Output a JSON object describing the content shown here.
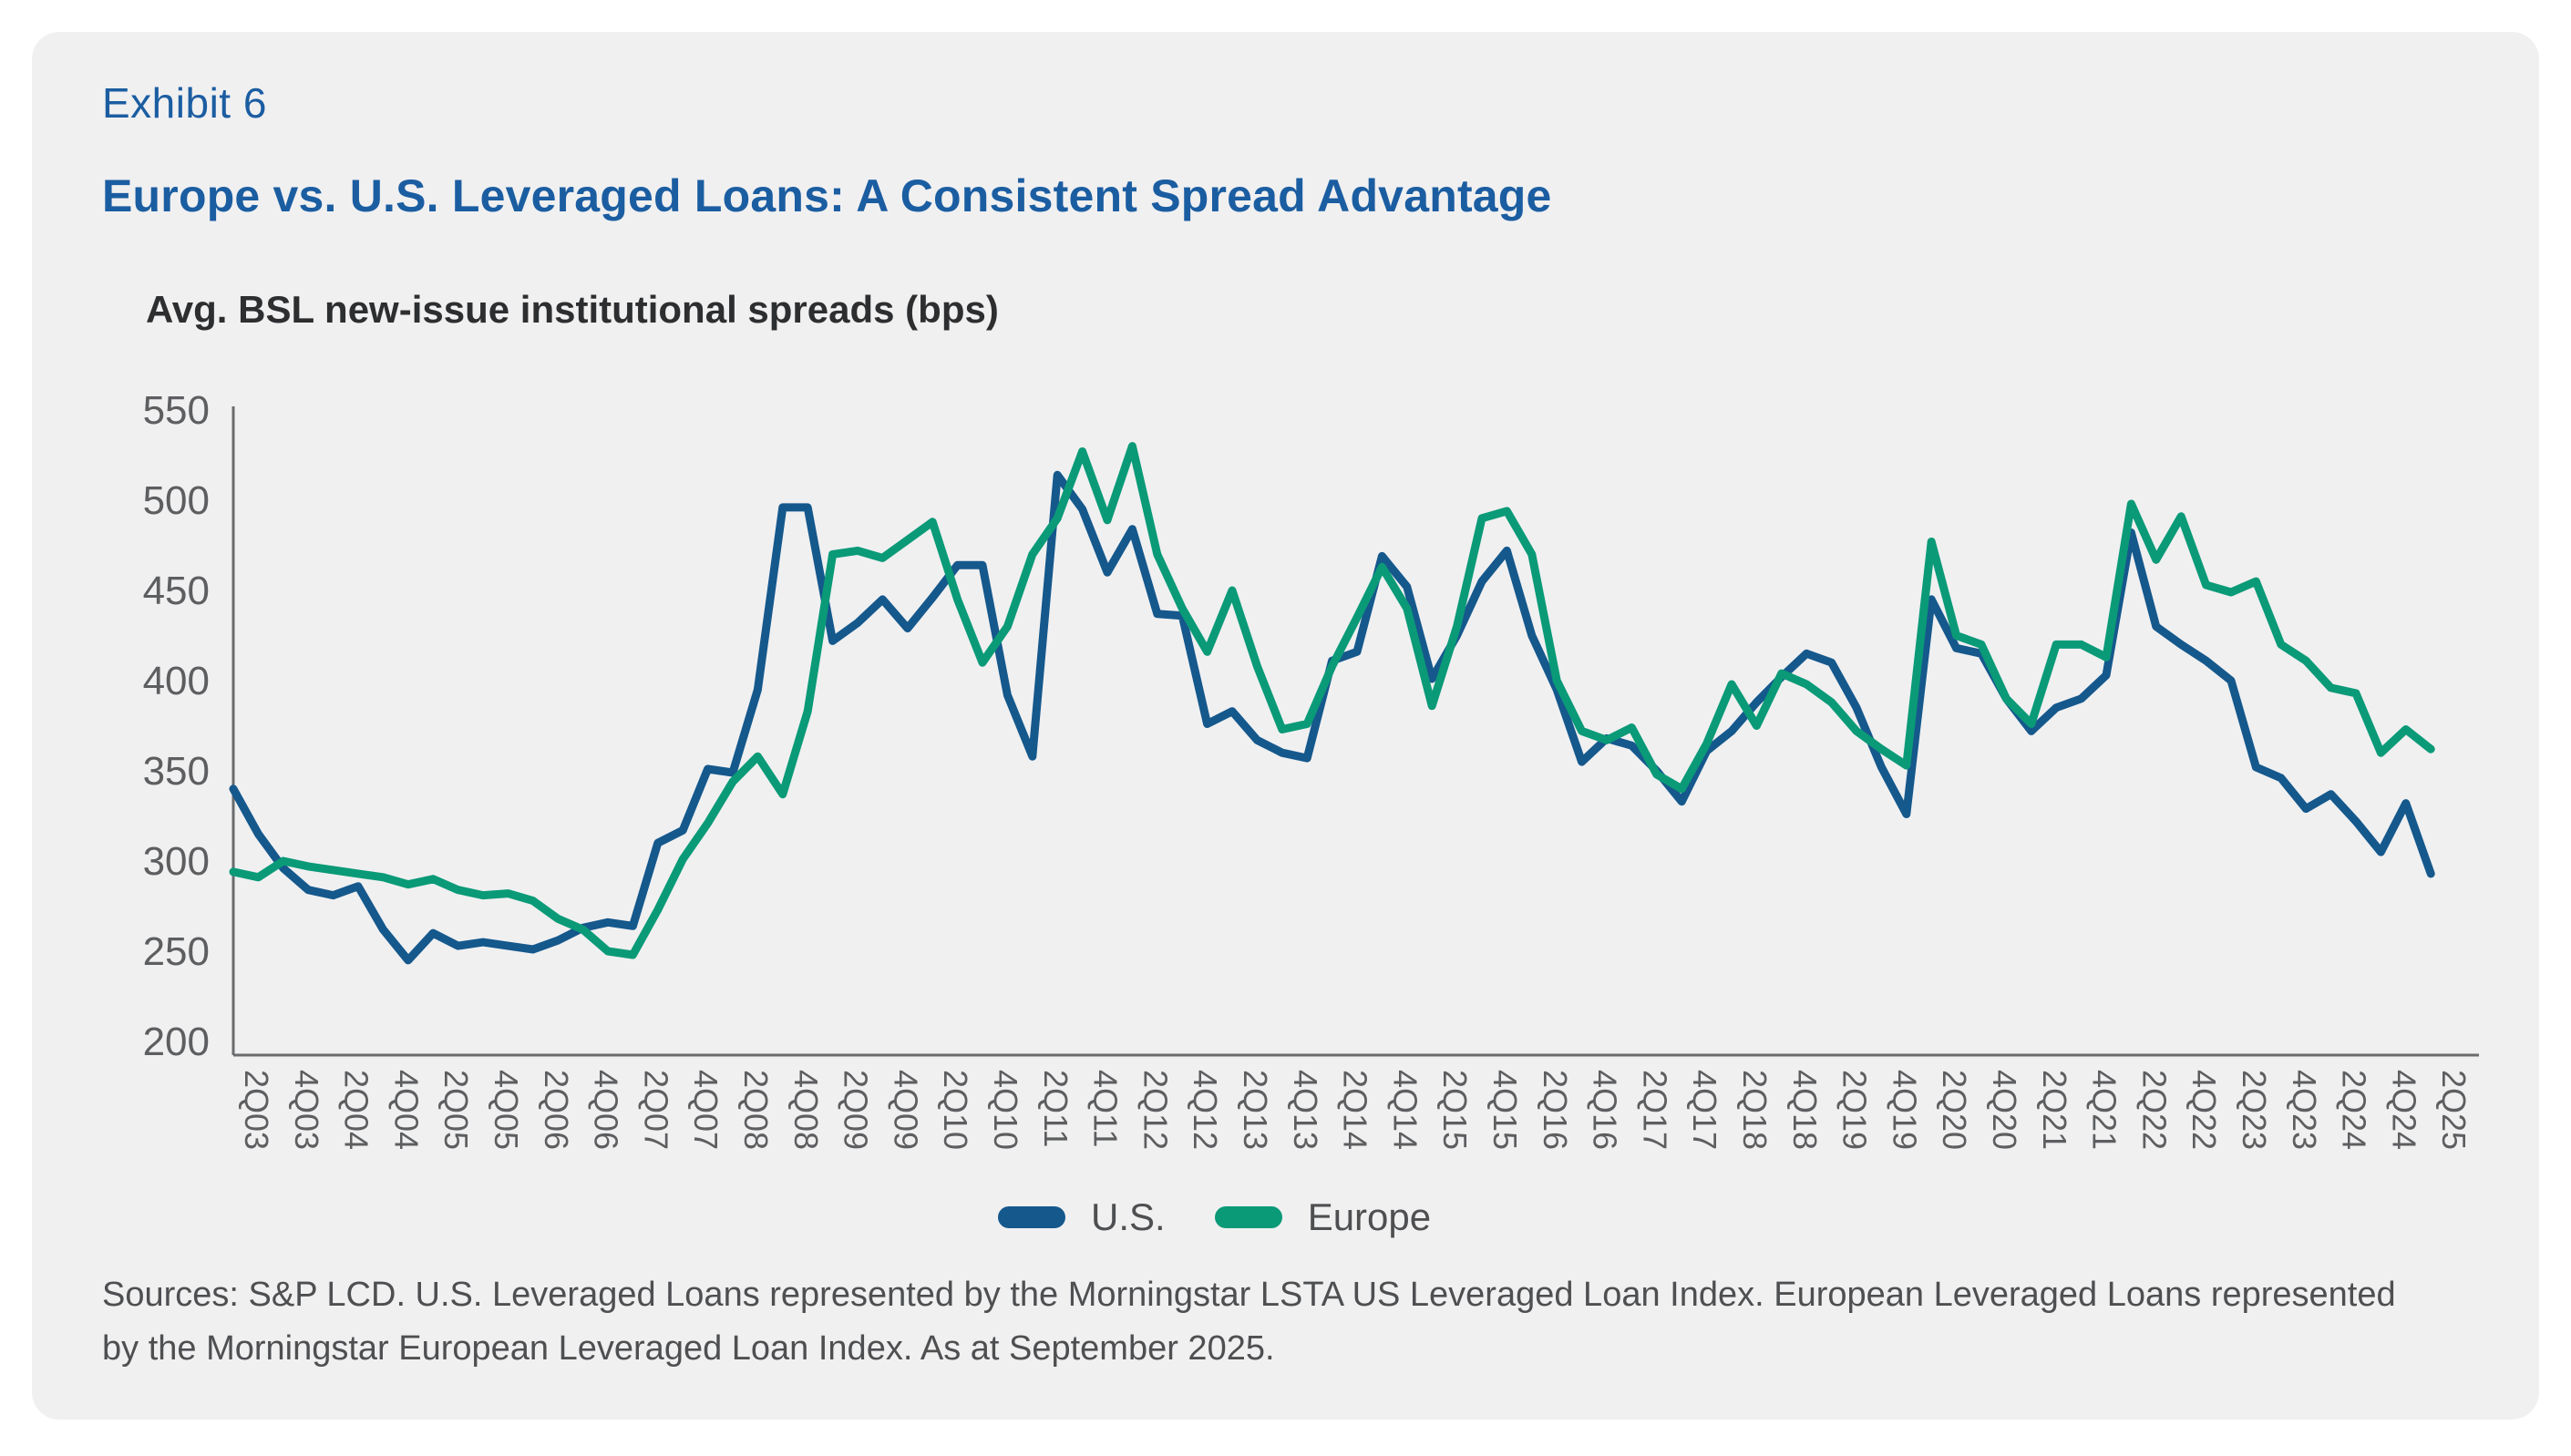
{
  "header": {
    "exhibit": "Exhibit 6",
    "title": "Europe vs. U.S. Leveraged Loans: A Consistent Spread Advantage",
    "subtitle": "Avg. BSL new-issue institutional spreads (bps)"
  },
  "legend": {
    "us_label": "U.S.",
    "europe_label": "Europe"
  },
  "footer": {
    "line1": "Sources: S&P LCD. U.S. Leveraged Loans represented by the Morningstar LSTA US Leveraged Loan Index. European Leveraged Loans represented",
    "line2": "by the Morningstar European Leveraged Loan Index. As at September 2025."
  },
  "colors": {
    "us_line": "#15588c",
    "europe_line": "#0a9a77",
    "title_blue": "#1b5da1",
    "axis_gray": "#6a6b6d",
    "tick_text": "#5d5e60",
    "card_bg": "#f0f0f1"
  },
  "chart_data": {
    "type": "line",
    "title": "Avg. BSL new-issue institutional spreads (bps)",
    "xlabel": "",
    "ylabel": "bps",
    "ylim": [
      200,
      550
    ],
    "ytick_step": 50,
    "grid": false,
    "legend_position": "bottom",
    "x_tick_labels": [
      "2Q03",
      "4Q03",
      "2Q04",
      "4Q04",
      "2Q05",
      "4Q05",
      "2Q06",
      "4Q06",
      "2Q07",
      "4Q07",
      "2Q08",
      "4Q08",
      "2Q09",
      "4Q09",
      "2Q10",
      "4Q10",
      "2Q11",
      "4Q11",
      "2Q12",
      "4Q12",
      "2Q13",
      "4Q13",
      "2Q14",
      "4Q14",
      "2Q15",
      "4Q15",
      "2Q16",
      "4Q16",
      "2Q17",
      "4Q17",
      "2Q18",
      "4Q18",
      "2Q19",
      "4Q19",
      "2Q20",
      "4Q20",
      "2Q21",
      "4Q21",
      "2Q22",
      "4Q22",
      "2Q23",
      "4Q23",
      "2Q24",
      "4Q24",
      "2Q25"
    ],
    "points_per_label": 2,
    "frequency": "quarterly",
    "series": [
      {
        "name": "U.S.",
        "values": [
          340,
          315,
          296,
          284,
          281,
          286,
          262,
          245,
          260,
          253,
          255,
          253,
          251,
          256,
          263,
          266,
          264,
          310,
          317,
          351,
          349,
          395,
          496,
          496,
          422,
          432,
          445,
          429,
          446,
          464,
          464,
          392,
          358,
          514,
          495,
          460,
          484,
          437,
          436,
          376,
          383,
          367,
          360,
          357,
          411,
          416,
          469,
          452,
          401,
          425,
          455,
          472,
          425,
          395,
          355,
          368,
          364,
          350,
          333,
          361,
          372,
          388,
          402,
          415,
          410,
          385,
          352,
          326,
          445,
          418,
          415,
          390,
          372,
          385,
          390,
          403,
          482,
          430,
          420,
          411,
          400,
          352,
          346,
          329,
          337,
          322,
          305,
          332,
          293
        ]
      },
      {
        "name": "Europe",
        "values": [
          294,
          291,
          300,
          297,
          295,
          293,
          291,
          287,
          290,
          284,
          281,
          282,
          278,
          268,
          262,
          250,
          248,
          273,
          301,
          321,
          344,
          358,
          337,
          383,
          470,
          472,
          468,
          478,
          488,
          445,
          410,
          430,
          470,
          490,
          527,
          489,
          530,
          470,
          440,
          416,
          450,
          408,
          373,
          376,
          408,
          435,
          463,
          440,
          386,
          430,
          490,
          494,
          470,
          400,
          372,
          367,
          374,
          348,
          340,
          365,
          398,
          375,
          404,
          398,
          388,
          372,
          362,
          353,
          477,
          425,
          420,
          390,
          376,
          420,
          420,
          413,
          498,
          467,
          491,
          453,
          449,
          455,
          420,
          411,
          396,
          393,
          360,
          373,
          362
        ]
      }
    ]
  }
}
